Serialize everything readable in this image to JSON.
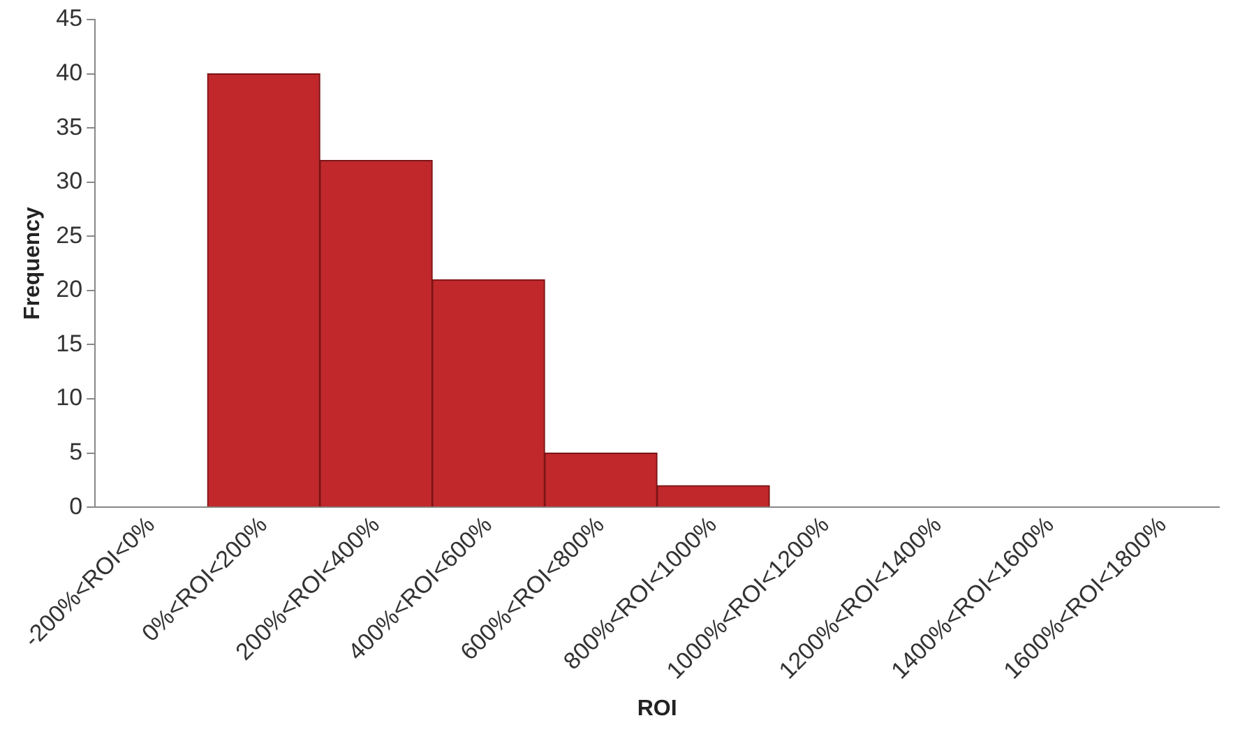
{
  "chart_data": {
    "type": "bar",
    "xlabel": "ROI",
    "ylabel": "Frequency",
    "categories": [
      "-200%<ROI<0%",
      "0%<ROI<200%",
      "200%<ROI<400%",
      "400%<ROI<600%",
      "600%<ROI<800%",
      "800%<ROI<1000%",
      "1000%<ROI<1200%",
      "1200%<ROI<1400%",
      "1400%<ROI<1600%",
      "1600%<ROI<1800%"
    ],
    "values": [
      0,
      40,
      32,
      21,
      5,
      2,
      0,
      0,
      0,
      0
    ],
    "color": "#c0282b",
    "ylim": [
      0,
      45
    ],
    "yticks": [
      0,
      5,
      10,
      15,
      20,
      25,
      30,
      35,
      40,
      45
    ],
    "grid": false,
    "legend": false
  }
}
